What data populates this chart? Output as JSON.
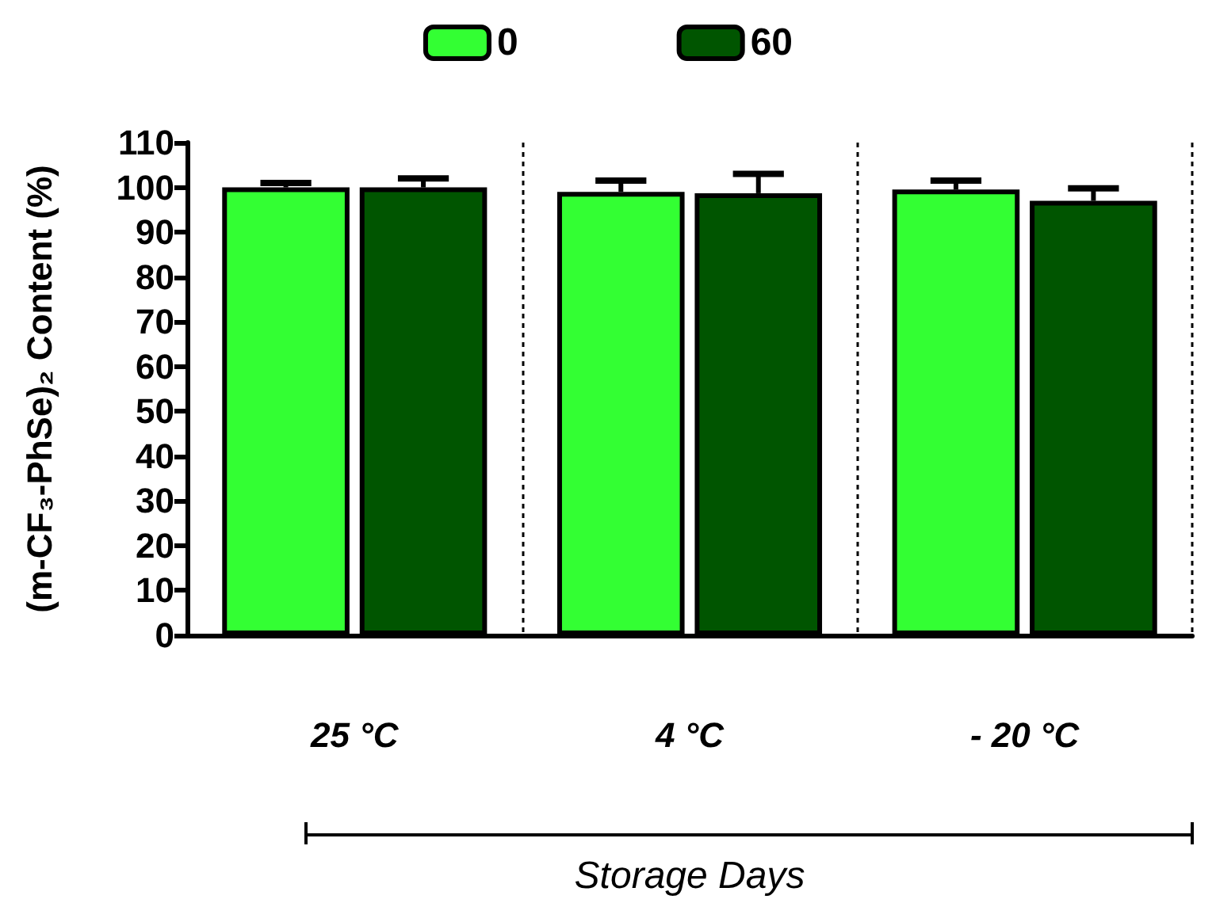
{
  "chart_data": {
    "type": "bar",
    "xlabel": "Storage Days",
    "ylabel": "(m-CF₃-PhSe)₂ Content (%)",
    "categories": [
      "25 °C",
      "4 °C",
      "- 20 °C"
    ],
    "series": [
      {
        "name": "0",
        "color": "#33ff33",
        "values": [
          100,
          99,
          99.5
        ],
        "errors": [
          1,
          2.5,
          2
        ]
      },
      {
        "name": "60",
        "color": "#005500",
        "values": [
          100,
          98.7,
          97
        ],
        "errors": [
          2,
          4.3,
          2.8
        ]
      }
    ],
    "ylim": [
      0,
      110
    ],
    "yticks": [
      0,
      10,
      20,
      30,
      40,
      50,
      60,
      70,
      80,
      90,
      100,
      110
    ],
    "grid": "x",
    "legend": "top"
  }
}
